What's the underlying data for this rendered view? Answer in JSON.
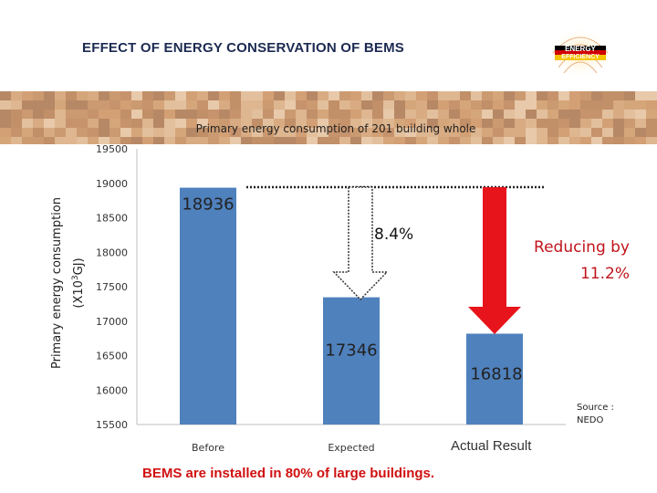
{
  "slide": {
    "title": "EFFECT OF ENERGY CONSERVATION OF BEMS",
    "footer": "BEMS are installed in 80% of large buildings.",
    "source": "Source :\nNEDO",
    "logo_text": [
      "ENERGY",
      "EFFICIENCY"
    ],
    "colors": {
      "title": "#1c2a52",
      "bar": "#4f81bd",
      "arrow": "#e8141b",
      "footer": "#d01010",
      "banner": "#b8753f"
    }
  },
  "chart_data": {
    "type": "bar",
    "title": "Primary energy consumption of 201 building whole",
    "ylabel_line1": "Primary energy consumption",
    "ylabel_line2_prefix": "(X10",
    "ylabel_line2_sup": "3",
    "ylabel_line2_suffix": "GJ)",
    "categories": [
      "Before",
      "Expected",
      "Actual Result"
    ],
    "values": [
      18936,
      17346,
      16818
    ],
    "data_labels": [
      "18936",
      "17346",
      "16818"
    ],
    "ylim": [
      15500,
      19500
    ],
    "yticks": [
      15500,
      16000,
      16500,
      17000,
      17500,
      18000,
      18500,
      19000,
      19500
    ],
    "grid": false,
    "legend": "none",
    "annotations": {
      "expected_reduction": "8.4%",
      "actual_reduction_line1": "Reducing by",
      "actual_reduction_line2": "11.2%"
    }
  }
}
